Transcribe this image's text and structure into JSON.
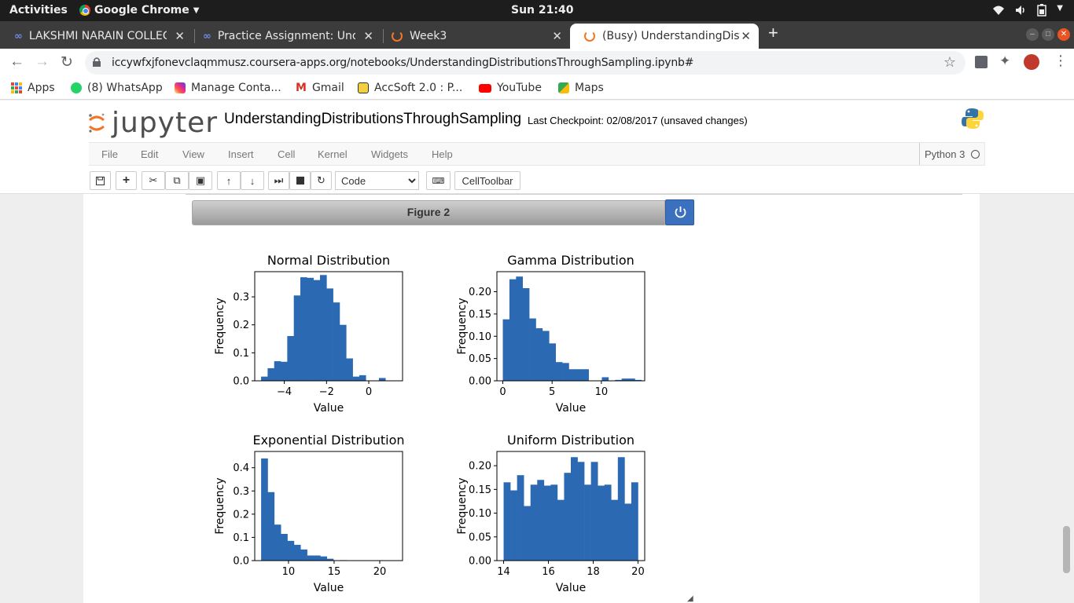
{
  "system_bar": {
    "activities": "Activities",
    "app_name": "Google Chrome",
    "clock": "Sun 21:40"
  },
  "tabs": [
    {
      "title": "LAKSHMI NARAIN COLLEGE",
      "icon": "coursera-icon"
    },
    {
      "title": "Practice Assignment: Understanding",
      "icon": "coursera-icon"
    },
    {
      "title": "Week3",
      "icon": "jupyter-icon"
    },
    {
      "title": "(Busy) UnderstandingDistributions",
      "icon": "jupyter-busy-icon",
      "active": true
    }
  ],
  "address_bar": {
    "url": "iccywfxjfonevclaqmmusz.coursera-apps.org/notebooks/UnderstandingDistributionsThroughSampling.ipynb#"
  },
  "bookmarks": [
    {
      "label": "Apps",
      "icon": "apps-grid-icon",
      "color": "#4285f4"
    },
    {
      "label": "(8) WhatsApp",
      "icon": "whatsapp-icon",
      "color": "#25d366"
    },
    {
      "label": "Manage Conta...",
      "icon": "instagram-icon",
      "color": "#d6249f"
    },
    {
      "label": "Gmail",
      "icon": "gmail-icon",
      "color": "#d93025"
    },
    {
      "label": "AccSoft 2.0 : P...",
      "icon": "accsoft-icon",
      "color": "#333333"
    },
    {
      "label": "YouTube",
      "icon": "youtube-icon",
      "color": "#ff0000"
    },
    {
      "label": "Maps",
      "icon": "maps-icon",
      "color": "#34a853"
    }
  ],
  "jupyter": {
    "logo_text": "jupyter",
    "notebook_name": "UnderstandingDistributionsThroughSampling",
    "checkpoint": "Last Checkpoint: 02/08/2017 (unsaved changes)",
    "menu": [
      "File",
      "Edit",
      "View",
      "Insert",
      "Cell",
      "Kernel",
      "Widgets",
      "Help"
    ],
    "kernel_name": "Python 3",
    "cell_type": "Code",
    "cell_toolbar_label": "CellToolbar"
  },
  "figure": {
    "header": "Figure 2"
  },
  "chart_data": [
    {
      "type": "bar",
      "title": "Normal Distribution",
      "xlabel": "Value",
      "ylabel": "Frequency",
      "xlim": [
        -5.4,
        1.6
      ],
      "ylim": [
        0,
        0.39
      ],
      "xticks": [
        -4,
        -2,
        0
      ],
      "xtick_labels": [
        "−4",
        "−2",
        "0"
      ],
      "yticks": [
        0,
        0.1,
        0.2,
        0.3
      ],
      "ytick_labels": [
        "0.0",
        "0.1",
        "0.2",
        "0.3"
      ],
      "bin_start": -5.1,
      "bin_width": 0.31,
      "values": [
        0.015,
        0.045,
        0.07,
        0.068,
        0.16,
        0.305,
        0.37,
        0.368,
        0.36,
        0.378,
        0.33,
        0.28,
        0.2,
        0.08,
        0.015,
        0.02,
        0.0,
        0.0,
        0.01,
        0.0
      ]
    },
    {
      "type": "bar",
      "title": "Gamma Distribution",
      "xlabel": "Value",
      "ylabel": "Frequency",
      "xlim": [
        -0.6,
        14.4
      ],
      "ylim": [
        0,
        0.245
      ],
      "xticks": [
        0,
        5,
        10
      ],
      "xtick_labels": [
        "0",
        "5",
        "10"
      ],
      "yticks": [
        0,
        0.05,
        0.1,
        0.15,
        0.2
      ],
      "ytick_labels": [
        "0.00",
        "0.05",
        "0.10",
        "0.15",
        "0.20"
      ],
      "bin_start": 0.0,
      "bin_width": 0.67,
      "values": [
        0.138,
        0.228,
        0.234,
        0.208,
        0.14,
        0.118,
        0.112,
        0.084,
        0.042,
        0.04,
        0.026,
        0.026,
        0.026,
        0.0,
        0.0,
        0.008,
        0.0,
        0.002,
        0.005,
        0.005,
        0.002
      ]
    },
    {
      "type": "bar",
      "title": "Exponential Distribution",
      "xlabel": "Value",
      "ylabel": "Frequency",
      "xlim": [
        6.3,
        22.5
      ],
      "ylim": [
        0,
        0.47
      ],
      "xticks": [
        10,
        15,
        20
      ],
      "xtick_labels": [
        "10",
        "15",
        "20"
      ],
      "yticks": [
        0,
        0.1,
        0.2,
        0.3,
        0.4
      ],
      "ytick_labels": [
        "0.0",
        "0.1",
        "0.2",
        "0.3",
        "0.4"
      ],
      "bin_start": 7.0,
      "bin_width": 0.72,
      "values": [
        0.44,
        0.295,
        0.155,
        0.115,
        0.085,
        0.068,
        0.048,
        0.022,
        0.022,
        0.018,
        0.008,
        0.0,
        0.002,
        0.0,
        0.0,
        0.0,
        0.0,
        0.0,
        0.0,
        0.0,
        0.0
      ]
    },
    {
      "type": "bar",
      "title": "Uniform Distribution",
      "xlabel": "Value",
      "ylabel": "Frequency",
      "xlim": [
        13.7,
        20.3
      ],
      "ylim": [
        0,
        0.23
      ],
      "xticks": [
        14,
        16,
        18,
        20
      ],
      "xtick_labels": [
        "14",
        "16",
        "18",
        "20"
      ],
      "yticks": [
        0,
        0.05,
        0.1,
        0.15,
        0.2
      ],
      "ytick_labels": [
        "0.00",
        "0.05",
        "0.10",
        "0.15",
        "0.20"
      ],
      "bin_start": 14.0,
      "bin_width": 0.3,
      "values": [
        0.165,
        0.148,
        0.18,
        0.115,
        0.16,
        0.17,
        0.158,
        0.16,
        0.128,
        0.185,
        0.218,
        0.208,
        0.16,
        0.208,
        0.158,
        0.16,
        0.128,
        0.218,
        0.12,
        0.165
      ]
    }
  ]
}
